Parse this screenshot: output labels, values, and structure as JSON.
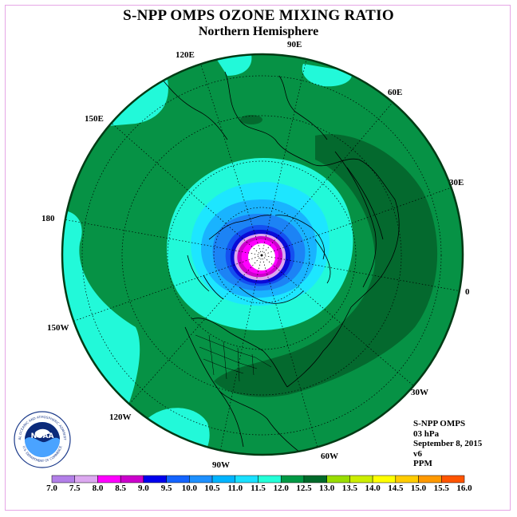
{
  "title": "S-NPP OMPS OZONE MIXING RATIO",
  "subtitle": "Northern Hemisphere",
  "longitude_labels": {
    "e90": "90E",
    "e60": "60E",
    "e30": "30E",
    "zero": "0",
    "w30": "30W",
    "w60": "60W",
    "w90": "90W",
    "w120": "120W",
    "w150": "150W",
    "d180": "180",
    "e150": "150E",
    "e120": "120E"
  },
  "info": {
    "instrument": "S-NPP OMPS",
    "level": "03 hPa",
    "date": "September 8, 2015",
    "version": "v6",
    "units": "PPM"
  },
  "colorbar": {
    "ticks": [
      "7.0",
      "7.5",
      "8.0",
      "8.5",
      "9.0",
      "9.5",
      "10.0",
      "10.5",
      "11.0",
      "11.5",
      "12.0",
      "12.5",
      "13.0",
      "13.5",
      "14.0",
      "14.5",
      "15.0",
      "15.5",
      "16.0"
    ],
    "colors": [
      "#b27fe8",
      "#dca8f0",
      "#ff00ff",
      "#cc00cc",
      "#0000ee",
      "#1464ff",
      "#1e90ff",
      "#00b4ff",
      "#1ae0ff",
      "#24ffd8",
      "#009944",
      "#006a2a",
      "#99dd00",
      "#ccee00",
      "#ffff00",
      "#ffcc00",
      "#ff9900",
      "#ff5500",
      "#ee0000",
      "#7a4a2a"
    ]
  },
  "map_colors": {
    "background_green": "#069245",
    "dark_green": "#04692e",
    "aqua": "#22f9d9",
    "cyan": "#1de6ff",
    "sky": "#19b3ff",
    "blue": "#1c83f5",
    "deep_blue": "#1450f0",
    "navy": "#0a0ad8",
    "magenta": "#ff00ff",
    "purple": "#cc00cc",
    "lavender": "#dca8f0",
    "pole_white": "#ffffff"
  },
  "logo": {
    "text": "NOAA",
    "ring_text": "NATIONAL OCEANIC AND ATMOSPHERIC ADMINISTRATION",
    "ring_text_bottom": "U.S. DEPARTMENT OF COMMERCE"
  }
}
